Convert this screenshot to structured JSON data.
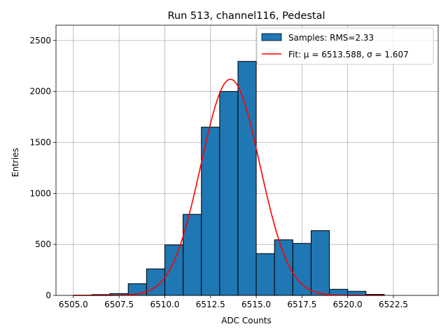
{
  "chart_data": {
    "type": "bar",
    "title": "Run 513, channel116, Pedestal",
    "xlabel": "ADC Counts",
    "ylabel": "Entries",
    "xlim": [
      6504.05,
      6524.95
    ],
    "ylim": [
      0,
      2650
    ],
    "xticks": [
      6505.0,
      6507.5,
      6510.0,
      6512.5,
      6515.0,
      6517.5,
      6520.0,
      6522.5
    ],
    "xtick_labels": [
      "6505.0",
      "6507.5",
      "6510.0",
      "6512.5",
      "6515.0",
      "6517.5",
      "6520.0",
      "6522.5"
    ],
    "yticks": [
      0,
      500,
      1000,
      1500,
      2000,
      2500
    ],
    "ytick_labels": [
      "0",
      "500",
      "1000",
      "1500",
      "2000",
      "2500"
    ],
    "grid": true,
    "legend_position": "top-right",
    "series": [
      {
        "name": "Samples: RMS=2.33",
        "kind": "histogram",
        "color": "#1f77b4",
        "edge_color": "#000000",
        "bin_edges": [
          6505,
          6506,
          6507,
          6508,
          6509,
          6510,
          6511,
          6512,
          6513,
          6514,
          6515,
          6516,
          6517,
          6518,
          6519,
          6520,
          6521,
          6522
        ],
        "counts": [
          2,
          8,
          18,
          115,
          260,
          495,
          795,
          1650,
          2000,
          2295,
          410,
          545,
          510,
          635,
          60,
          40,
          10
        ]
      },
      {
        "name": "Fit: μ = 6513.588, σ = 1.607",
        "kind": "gaussian",
        "color": "#ff0000",
        "mu": 6513.588,
        "sigma": 1.607,
        "amplitude": 2120,
        "x_range": [
          6505.0,
          6522.0
        ]
      }
    ]
  }
}
